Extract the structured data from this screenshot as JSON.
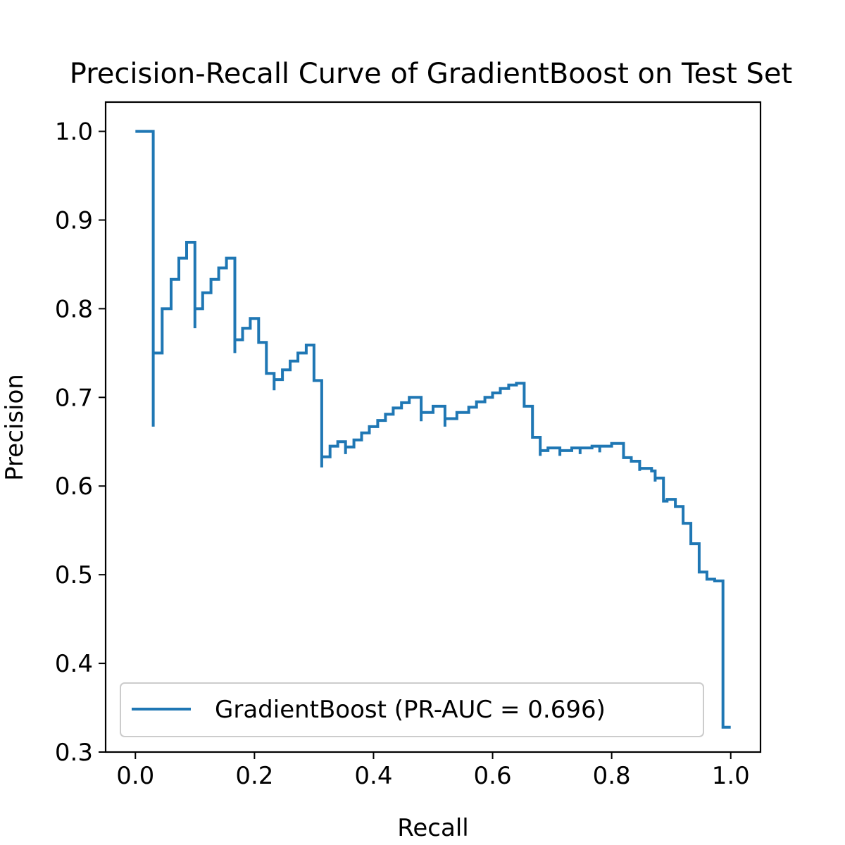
{
  "chart_data": {
    "type": "line",
    "title": "Precision-Recall Curve of GradientBoost on Test Set",
    "xlabel": "Recall",
    "ylabel": "Precision",
    "xlim": [
      -0.05,
      1.05
    ],
    "ylim": [
      0.3,
      1.033
    ],
    "x_ticks": [
      "0.0",
      "0.2",
      "0.4",
      "0.6",
      "0.8",
      "1.0"
    ],
    "y_ticks": [
      "0.3",
      "0.4",
      "0.5",
      "0.6",
      "0.7",
      "0.8",
      "0.9",
      "1.0"
    ],
    "grid": false,
    "legend_position": "lower-left",
    "series": [
      {
        "name": "GradientBoost (PR-AUC = 0.696)",
        "color": "#1f77b4",
        "drawstyle": "steps-post",
        "points": [
          [
            0.0,
            1.0
          ],
          [
            0.03,
            1.0
          ],
          [
            0.03,
            0.667
          ],
          [
            0.03,
            0.75
          ],
          [
            0.045,
            0.8
          ],
          [
            0.06,
            0.833
          ],
          [
            0.073,
            0.857
          ],
          [
            0.086,
            0.875
          ],
          [
            0.1,
            0.778
          ],
          [
            0.1,
            0.8
          ],
          [
            0.113,
            0.818
          ],
          [
            0.127,
            0.833
          ],
          [
            0.14,
            0.846
          ],
          [
            0.153,
            0.857
          ],
          [
            0.167,
            0.75
          ],
          [
            0.167,
            0.765
          ],
          [
            0.18,
            0.778
          ],
          [
            0.193,
            0.789
          ],
          [
            0.207,
            0.762
          ],
          [
            0.22,
            0.739
          ],
          [
            0.22,
            0.727
          ],
          [
            0.233,
            0.708
          ],
          [
            0.233,
            0.72
          ],
          [
            0.247,
            0.731
          ],
          [
            0.26,
            0.741
          ],
          [
            0.273,
            0.75
          ],
          [
            0.287,
            0.759
          ],
          [
            0.3,
            0.719
          ],
          [
            0.313,
            0.621
          ],
          [
            0.313,
            0.633
          ],
          [
            0.327,
            0.645
          ],
          [
            0.34,
            0.65
          ],
          [
            0.353,
            0.636
          ],
          [
            0.353,
            0.644
          ],
          [
            0.367,
            0.652
          ],
          [
            0.38,
            0.66
          ],
          [
            0.393,
            0.667
          ],
          [
            0.407,
            0.674
          ],
          [
            0.42,
            0.681
          ],
          [
            0.433,
            0.688
          ],
          [
            0.447,
            0.694
          ],
          [
            0.46,
            0.7
          ],
          [
            0.48,
            0.673
          ],
          [
            0.48,
            0.683
          ],
          [
            0.5,
            0.69
          ],
          [
            0.52,
            0.667
          ],
          [
            0.52,
            0.676
          ],
          [
            0.54,
            0.683
          ],
          [
            0.56,
            0.689
          ],
          [
            0.573,
            0.695
          ],
          [
            0.587,
            0.7
          ],
          [
            0.6,
            0.705
          ],
          [
            0.613,
            0.71
          ],
          [
            0.627,
            0.714
          ],
          [
            0.64,
            0.716
          ],
          [
            0.653,
            0.69
          ],
          [
            0.667,
            0.655
          ],
          [
            0.68,
            0.634
          ],
          [
            0.68,
            0.64
          ],
          [
            0.693,
            0.643
          ],
          [
            0.713,
            0.634
          ],
          [
            0.713,
            0.64
          ],
          [
            0.733,
            0.643
          ],
          [
            0.747,
            0.636
          ],
          [
            0.747,
            0.643
          ],
          [
            0.767,
            0.645
          ],
          [
            0.78,
            0.638
          ],
          [
            0.78,
            0.645
          ],
          [
            0.8,
            0.648
          ],
          [
            0.82,
            0.632
          ],
          [
            0.833,
            0.628
          ],
          [
            0.847,
            0.617
          ],
          [
            0.847,
            0.62
          ],
          [
            0.867,
            0.617
          ],
          [
            0.873,
            0.605
          ],
          [
            0.873,
            0.609
          ],
          [
            0.887,
            0.583
          ],
          [
            0.893,
            0.585
          ],
          [
            0.907,
            0.577
          ],
          [
            0.92,
            0.558
          ],
          [
            0.933,
            0.535
          ],
          [
            0.947,
            0.503
          ],
          [
            0.96,
            0.495
          ],
          [
            0.973,
            0.493
          ],
          [
            0.987,
            0.328
          ]
        ]
      }
    ]
  }
}
